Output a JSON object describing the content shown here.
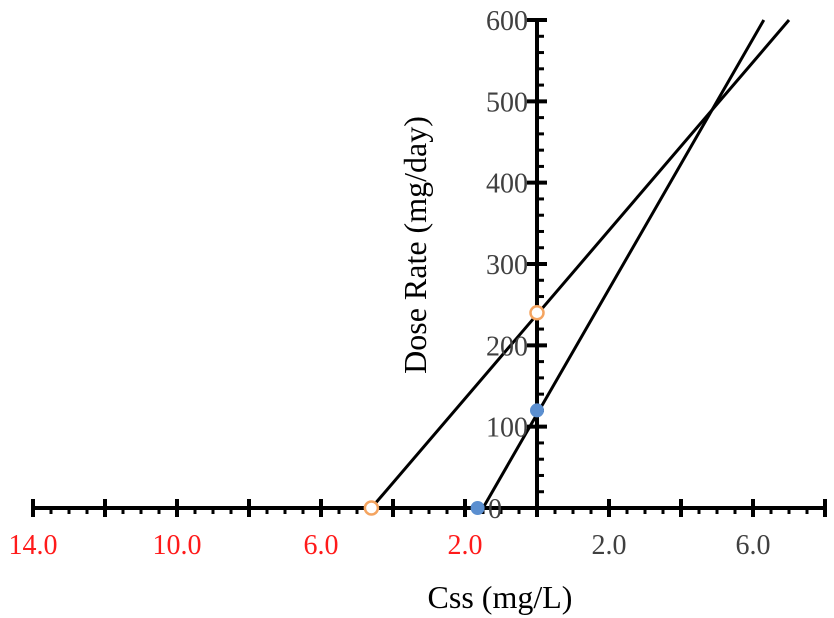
{
  "chart_data": {
    "type": "scatter",
    "xlabel": "Css (mg/L)",
    "ylabel": "Dose Rate (mg/day)",
    "xlim": [
      -14,
      8
    ],
    "ylim": [
      0,
      600
    ],
    "x_tick_labels": [
      {
        "value": -14,
        "text": "14.0",
        "color": "#ff1a1a"
      },
      {
        "value": -10,
        "text": "10.0",
        "color": "#ff1a1a"
      },
      {
        "value": -6,
        "text": "6.0",
        "color": "#ff1a1a"
      },
      {
        "value": -2,
        "text": "2.0",
        "color": "#ff1a1a"
      },
      {
        "value": 2,
        "text": "2.0",
        "color": "#404040"
      },
      {
        "value": 6,
        "text": "6.0",
        "color": "#404040"
      }
    ],
    "y_tick_labels": [
      {
        "value": 100,
        "text": "100"
      },
      {
        "value": 200,
        "text": "200"
      },
      {
        "value": 300,
        "text": "300"
      },
      {
        "value": 400,
        "text": "400"
      },
      {
        "value": 500,
        "text": "500"
      },
      {
        "value": 600,
        "text": "600"
      }
    ],
    "y_zero_label": "0",
    "grid": false,
    "lines": [
      {
        "points": [
          [
            -4.6,
            0
          ],
          [
            7.0,
            600
          ]
        ],
        "color": "#000000"
      },
      {
        "points": [
          [
            -1.5,
            0
          ],
          [
            6.3,
            600
          ]
        ],
        "color": "#000000"
      }
    ],
    "markers": [
      {
        "x": -4.6,
        "y": 0,
        "style": "open",
        "color": "#f4a460"
      },
      {
        "x": 0,
        "y": 240,
        "style": "open",
        "color": "#f4a460"
      },
      {
        "x": -1.65,
        "y": 0,
        "style": "filled",
        "color": "#5b8fd0"
      },
      {
        "x": 0,
        "y": 120,
        "style": "filled",
        "color": "#5b8fd0"
      }
    ]
  }
}
